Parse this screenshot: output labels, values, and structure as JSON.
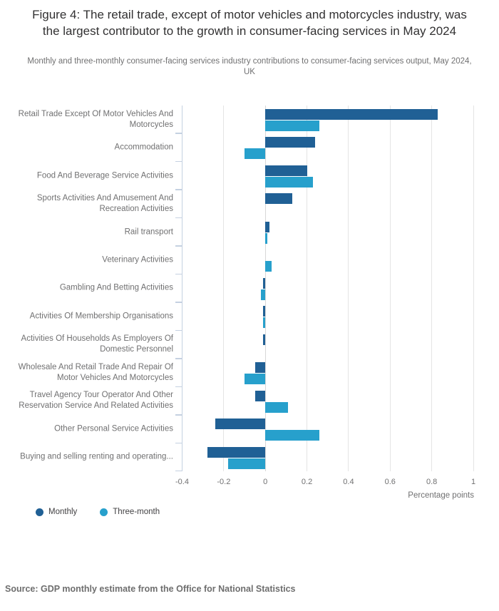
{
  "header": {
    "title": "Figure 4: The retail trade, except of motor vehicles and motorcycles industry, was the largest contributor to the growth in consumer-facing services in May 2024",
    "subtitle": "Monthly and three-monthly consumer-facing services industry contributions to consumer-facing services output, May 2024, UK"
  },
  "chart_data": {
    "type": "bar",
    "orientation": "horizontal",
    "title": "Figure 4: The retail trade, except of motor vehicles and motorcycles industry, was the largest contributor to the growth in consumer-facing services in May 2024",
    "categories": [
      "Retail Trade Except Of Motor Vehicles And Motorcycles",
      "Accommodation",
      "Food And Beverage Service Activities",
      "Sports Activities And Amusement And Recreation Activities",
      "Rail transport",
      "Veterinary Activities",
      "Gambling And Betting Activities",
      "Activities Of Membership Organisations",
      "Activities Of Households As Employers Of Domestic Personnel",
      "Wholesale And Retail Trade And Repair Of Motor Vehicles And Motorcycles",
      "Travel Agency Tour Operator And Other Reservation Service And Related Activities",
      "Other Personal Service Activities",
      "Buying and selling renting and operating..."
    ],
    "series": [
      {
        "name": "Monthly",
        "color": "#206095",
        "values": [
          0.83,
          0.24,
          0.2,
          0.13,
          0.02,
          0.0,
          -0.01,
          -0.01,
          -0.01,
          -0.05,
          -0.05,
          -0.24,
          -0.28
        ]
      },
      {
        "name": "Three-month",
        "color": "#27A0CC",
        "values": [
          0.26,
          -0.1,
          0.23,
          0.0,
          0.01,
          0.03,
          -0.02,
          -0.01,
          0.0,
          -0.1,
          0.11,
          0.26,
          -0.18
        ]
      }
    ],
    "xlabel": "Percentage points",
    "xlim": [
      -0.4,
      1
    ],
    "xticks": [
      {
        "value": -0.4,
        "label": "-0.4"
      },
      {
        "value": -0.2,
        "label": "-0.2"
      },
      {
        "value": 0,
        "label": "0"
      },
      {
        "value": 0.2,
        "label": "0.2"
      },
      {
        "value": 0.4,
        "label": "0.4"
      },
      {
        "value": 0.6,
        "label": "0.6"
      },
      {
        "value": 0.8,
        "label": "0.8"
      },
      {
        "value": 1,
        "label": "1"
      }
    ],
    "grid": "vertical",
    "legend_position": "bottom-left"
  },
  "footer": {
    "source": "Source: GDP monthly estimate from the Office for National Statistics"
  }
}
